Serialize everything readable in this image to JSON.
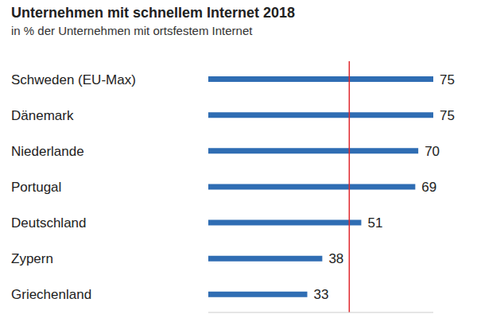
{
  "chart_data": {
    "type": "bar",
    "title": "Unternehmen mit schnellem Internet 2018",
    "subtitle": "in % der Unternehmen mit ortsfestem Internet",
    "categories": [
      "Schweden (EU-Max)",
      "Dänemark",
      "Niederlande",
      "Portugal",
      "Deutschland",
      "Zypern",
      "Griechenland"
    ],
    "values": [
      75,
      75,
      70,
      69,
      51,
      38,
      33
    ],
    "color": "#2f6db3",
    "xlim": [
      0,
      75
    ],
    "orientation": "horizontal",
    "data_labels": true,
    "tick_labels": "y",
    "grid": false,
    "reference_line": {
      "value": 47,
      "color": "#e0262b"
    }
  }
}
